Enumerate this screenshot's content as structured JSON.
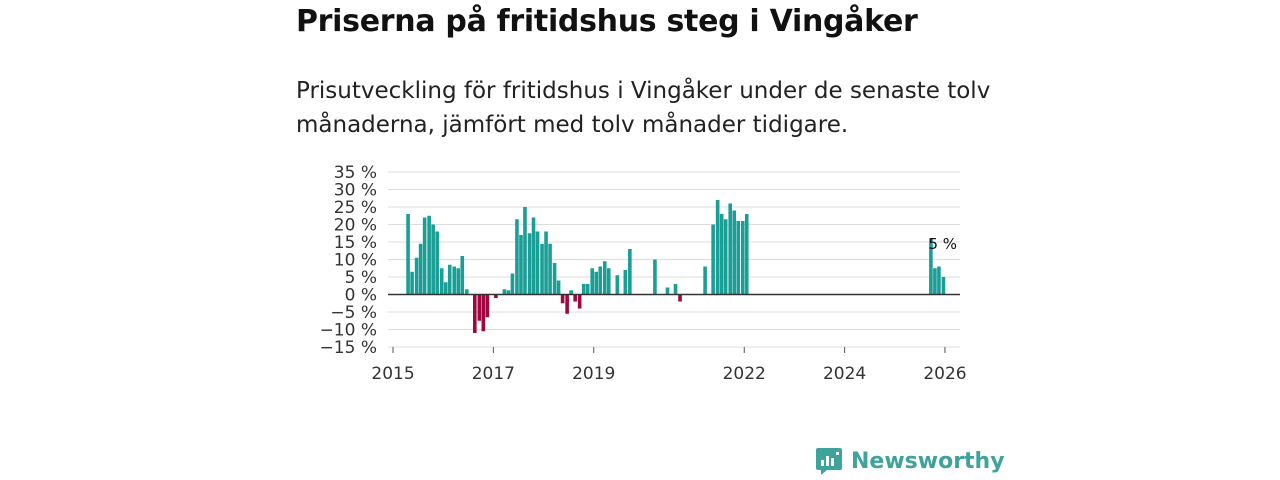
{
  "header": {
    "title": "Priserna på fritidshus steg i Vingåker",
    "subtitle": "Prisutveckling för fritidshus i Vingåker under de senaste tolv månaderna, jämfört med tolv månader tidigare."
  },
  "brand": {
    "name": "Newsworthy",
    "color": "#3ea39a"
  },
  "colors": {
    "positive": "#1a9e95",
    "negative": "#a0063f",
    "zero_line": "#333333",
    "grid": "#dddddd"
  },
  "chart_data": {
    "type": "bar",
    "title": "Priserna på fritidshus steg i Vingåker",
    "xlabel": "",
    "ylabel": "",
    "ylim": [
      -15,
      35
    ],
    "yticks": [
      -15,
      -10,
      -5,
      0,
      5,
      10,
      15,
      20,
      25,
      30,
      35
    ],
    "ytick_labels": [
      "−15 %",
      "−10 %",
      "−5 %",
      "0 %",
      "5 %",
      "10 %",
      "15 %",
      "20 %",
      "25 %",
      "30 %",
      "35 %"
    ],
    "xlim": [
      2014.9,
      2026.3
    ],
    "xticks": [
      2015,
      2017,
      2019,
      2022,
      2024,
      2026
    ],
    "xtick_labels": [
      "2015",
      "2017",
      "2019",
      "2022",
      "2024",
      "2026"
    ],
    "annotation": {
      "label": "5 %",
      "x": 2025.97,
      "y": 5
    },
    "series": [
      {
        "name": "Prisutveckling",
        "points": [
          {
            "x": 2015.3,
            "y": 23
          },
          {
            "x": 2015.38,
            "y": 6.5
          },
          {
            "x": 2015.47,
            "y": 10.5
          },
          {
            "x": 2015.55,
            "y": 14.5
          },
          {
            "x": 2015.63,
            "y": 22
          },
          {
            "x": 2015.72,
            "y": 22.5
          },
          {
            "x": 2015.8,
            "y": 20
          },
          {
            "x": 2015.88,
            "y": 18
          },
          {
            "x": 2015.97,
            "y": 7.5
          },
          {
            "x": 2016.05,
            "y": 3.5
          },
          {
            "x": 2016.13,
            "y": 8.5
          },
          {
            "x": 2016.22,
            "y": 8
          },
          {
            "x": 2016.3,
            "y": 7.5
          },
          {
            "x": 2016.38,
            "y": 11
          },
          {
            "x": 2016.47,
            "y": 1.5
          },
          {
            "x": 2016.63,
            "y": -11
          },
          {
            "x": 2016.72,
            "y": -7.5
          },
          {
            "x": 2016.8,
            "y": -10.5
          },
          {
            "x": 2016.88,
            "y": -6.5
          },
          {
            "x": 2017.05,
            "y": -1
          },
          {
            "x": 2017.22,
            "y": 1.5
          },
          {
            "x": 2017.3,
            "y": 1.2
          },
          {
            "x": 2017.38,
            "y": 6
          },
          {
            "x": 2017.47,
            "y": 21.5
          },
          {
            "x": 2017.55,
            "y": 17
          },
          {
            "x": 2017.63,
            "y": 25
          },
          {
            "x": 2017.72,
            "y": 17.5
          },
          {
            "x": 2017.8,
            "y": 22
          },
          {
            "x": 2017.88,
            "y": 18
          },
          {
            "x": 2017.97,
            "y": 14.5
          },
          {
            "x": 2018.05,
            "y": 18
          },
          {
            "x": 2018.13,
            "y": 14.5
          },
          {
            "x": 2018.22,
            "y": 9
          },
          {
            "x": 2018.3,
            "y": 4
          },
          {
            "x": 2018.38,
            "y": -2.5
          },
          {
            "x": 2018.47,
            "y": -5.5
          },
          {
            "x": 2018.55,
            "y": 1.2
          },
          {
            "x": 2018.63,
            "y": -2
          },
          {
            "x": 2018.72,
            "y": -4
          },
          {
            "x": 2018.8,
            "y": 3
          },
          {
            "x": 2018.88,
            "y": 3
          },
          {
            "x": 2018.97,
            "y": 7.5
          },
          {
            "x": 2019.05,
            "y": 6.5
          },
          {
            "x": 2019.13,
            "y": 8
          },
          {
            "x": 2019.22,
            "y": 9.5
          },
          {
            "x": 2019.3,
            "y": 7.5
          },
          {
            "x": 2019.47,
            "y": 5.5
          },
          {
            "x": 2019.63,
            "y": 7
          },
          {
            "x": 2019.72,
            "y": 13
          },
          {
            "x": 2020.22,
            "y": 10
          },
          {
            "x": 2020.47,
            "y": 2
          },
          {
            "x": 2020.63,
            "y": 3
          },
          {
            "x": 2020.72,
            "y": -2
          },
          {
            "x": 2021.22,
            "y": 8
          },
          {
            "x": 2021.38,
            "y": 20
          },
          {
            "x": 2021.47,
            "y": 27
          },
          {
            "x": 2021.55,
            "y": 23
          },
          {
            "x": 2021.63,
            "y": 21.5
          },
          {
            "x": 2021.72,
            "y": 26
          },
          {
            "x": 2021.8,
            "y": 24
          },
          {
            "x": 2021.88,
            "y": 21
          },
          {
            "x": 2021.97,
            "y": 21
          },
          {
            "x": 2022.05,
            "y": 23
          },
          {
            "x": 2025.72,
            "y": 16
          },
          {
            "x": 2025.8,
            "y": 7.5
          },
          {
            "x": 2025.88,
            "y": 8
          },
          {
            "x": 2025.97,
            "y": 5
          }
        ]
      }
    ]
  }
}
